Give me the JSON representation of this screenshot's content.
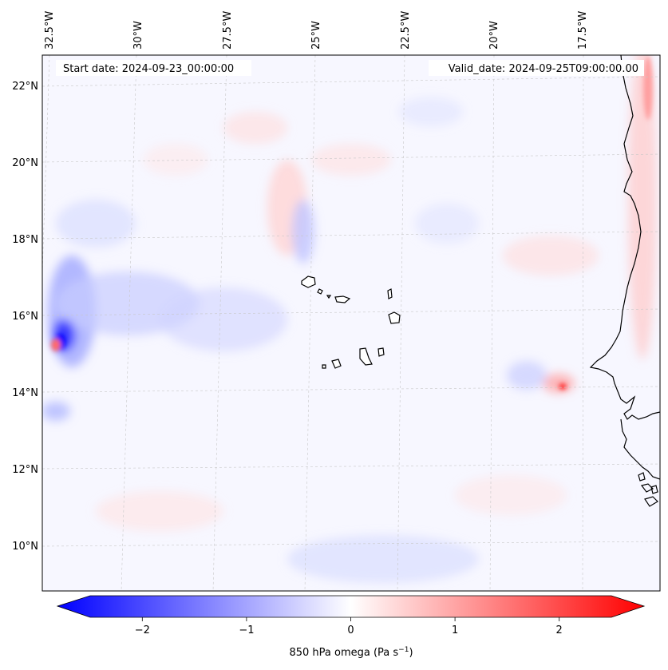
{
  "map": {
    "start_date": "Start date: 2024-09-23_00:00:00",
    "valid_date": "Valid_date: 2024-09-25T09:00:00.00",
    "lon_ticks": [
      "32.5°W",
      "30°W",
      "27.5°W",
      "25°W",
      "22.5°W",
      "20°W",
      "17.5°W"
    ],
    "lat_ticks": [
      "22°N",
      "20°N",
      "18°N",
      "16°N",
      "14°N",
      "12°N",
      "10°N"
    ],
    "colorbar": {
      "label_main": "850 hPa omega (Pa s",
      "label_exp": "−1",
      "label_close": ")",
      "ticks": [
        "−2",
        "−1",
        "0",
        "1",
        "2"
      ],
      "tick_values": [
        -2,
        -1,
        0,
        1,
        2
      ],
      "vmin": -2.5,
      "vmax": 2.5,
      "cmap": [
        "#0000ff",
        "#ffffff",
        "#ff0000"
      ]
    }
  }
}
